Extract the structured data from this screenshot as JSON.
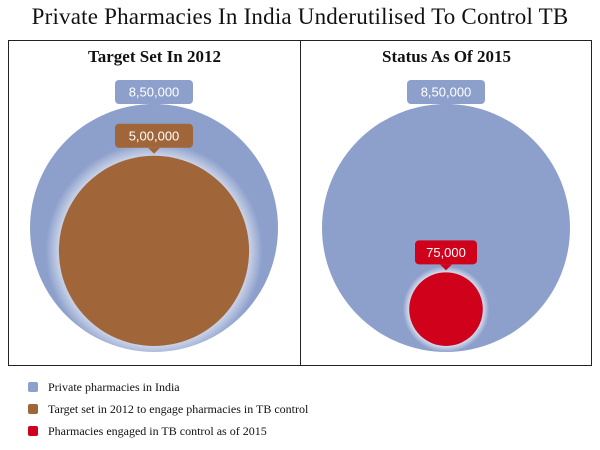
{
  "title": "Private Pharmacies In India Underutilised To Control TB",
  "colors": {
    "private": "#8da0cc",
    "target": "#a0663a",
    "engaged": "#d0021b"
  },
  "chart_data": [
    {
      "type": "bubble",
      "title": "Target Set In 2012",
      "outer": {
        "series": "Private pharmacies in India",
        "value": 850000,
        "label": "8,50,000"
      },
      "inner": {
        "series": "Target set in 2012 to engage pharmacies in TB control",
        "value": 500000,
        "label": "5,00,000"
      }
    },
    {
      "type": "bubble",
      "title": "Status As Of 2015",
      "outer": {
        "series": "Private pharmacies in India",
        "value": 850000,
        "label": "8,50,000"
      },
      "inner": {
        "series": "Pharmacies engaged in TB control as of 2015",
        "value": 75000,
        "label": "75,000"
      }
    }
  ],
  "legend": [
    {
      "label": "Private pharmacies in India",
      "color": "#8da0cc"
    },
    {
      "label": "Target set in 2012 to engage pharmacies in TB control",
      "color": "#a0663a"
    },
    {
      "label": "Pharmacies engaged in TB control as of 2015",
      "color": "#d0021b"
    }
  ]
}
